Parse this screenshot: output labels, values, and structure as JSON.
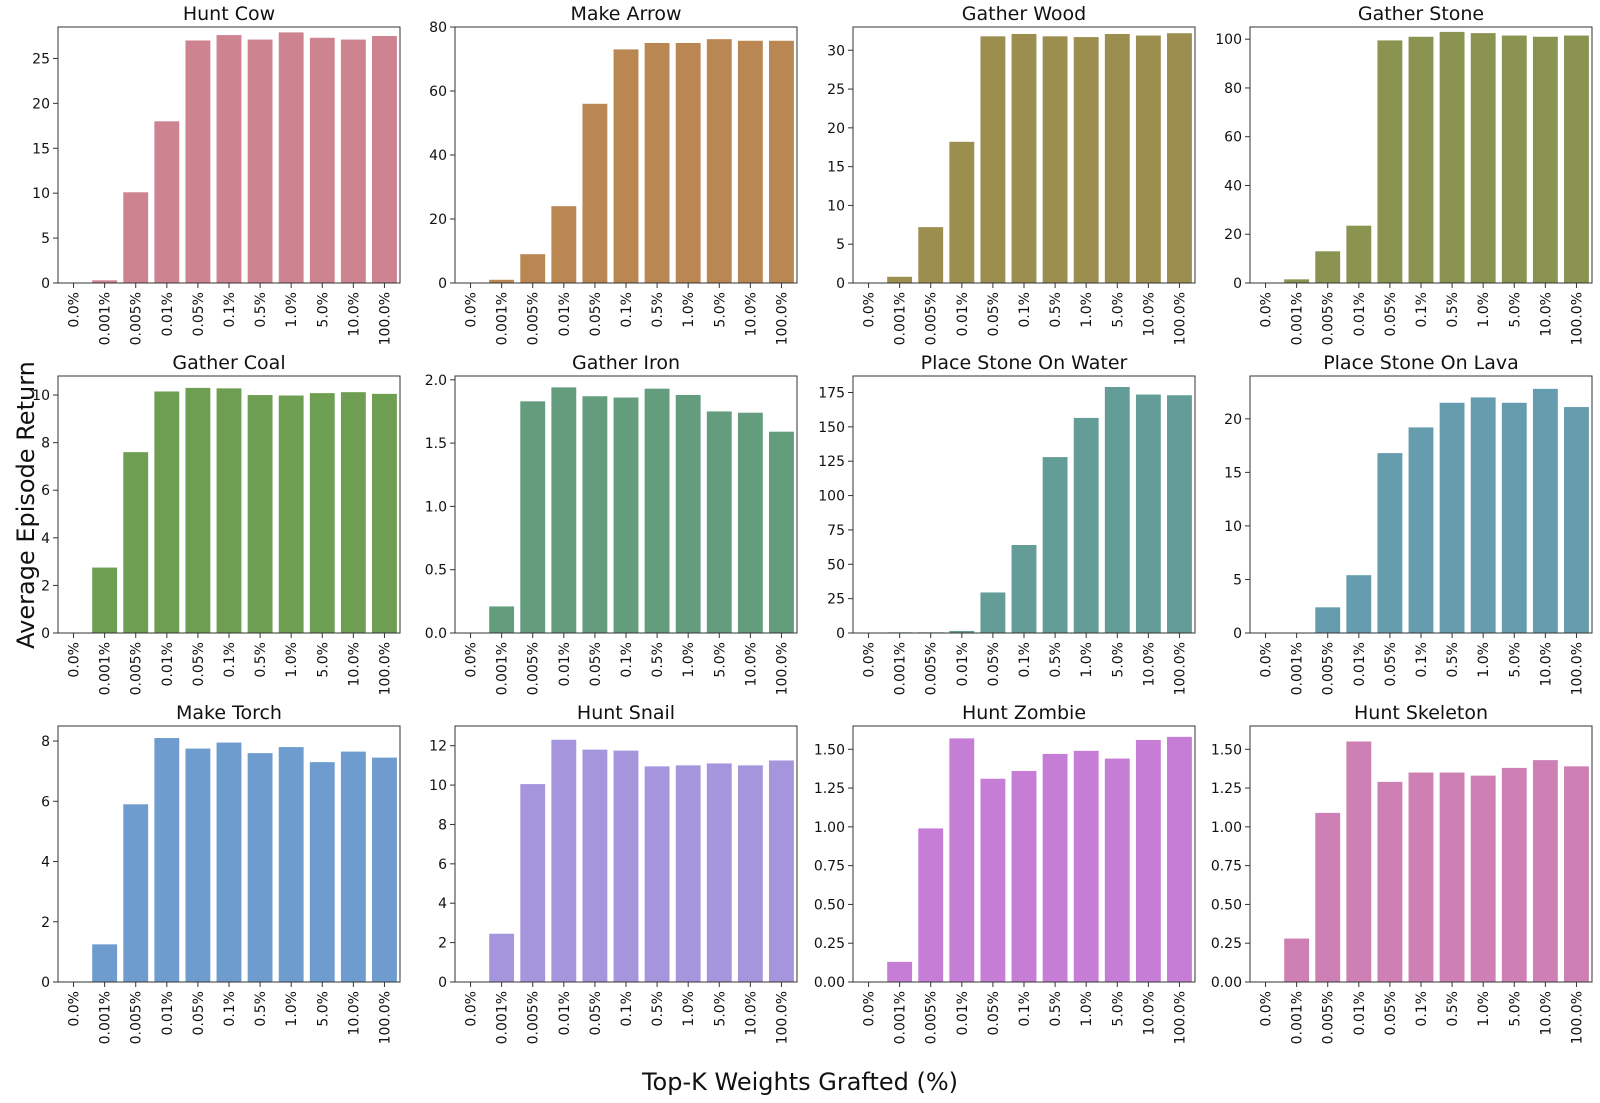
{
  "figure": {
    "ylabel": "Average Episode Return",
    "xlabel": "Top-K Weights Grafted (%)"
  },
  "chart_data": [
    {
      "type": "bar",
      "title": "Hunt Cow",
      "color": "#cd8390",
      "categories": [
        "0.0%",
        "0.001%",
        "0.005%",
        "0.01%",
        "0.05%",
        "0.1%",
        "0.5%",
        "1.0%",
        "5.0%",
        "10.0%",
        "100.0%"
      ],
      "values": [
        0.0,
        0.3,
        10.1,
        18.0,
        27.0,
        27.6,
        27.1,
        27.9,
        27.3,
        27.1,
        27.5
      ],
      "ylim": [
        0,
        28.5
      ],
      "yticks": [
        0,
        5,
        10,
        15,
        20,
        25
      ],
      "ytick_labels": [
        "0",
        "5",
        "10",
        "15",
        "20",
        "25"
      ]
    },
    {
      "type": "bar",
      "title": "Make Arrow",
      "color": "#ba8651",
      "categories": [
        "0.0%",
        "0.001%",
        "0.005%",
        "0.01%",
        "0.05%",
        "0.1%",
        "0.5%",
        "1.0%",
        "5.0%",
        "10.0%",
        "100.0%"
      ],
      "values": [
        0.0,
        1.0,
        9.0,
        24.0,
        56.0,
        73.0,
        75.0,
        75.0,
        76.2,
        75.7,
        75.7
      ],
      "ylim": [
        0,
        80
      ],
      "yticks": [
        0,
        20,
        40,
        60,
        80
      ],
      "ytick_labels": [
        "0",
        "20",
        "40",
        "60",
        "80"
      ]
    },
    {
      "type": "bar",
      "title": "Gather Wood",
      "color": "#9b8e4f",
      "categories": [
        "0.0%",
        "0.001%",
        "0.005%",
        "0.01%",
        "0.05%",
        "0.1%",
        "0.5%",
        "1.0%",
        "5.0%",
        "10.0%",
        "100.0%"
      ],
      "values": [
        0.0,
        0.8,
        7.2,
        18.2,
        31.8,
        32.1,
        31.8,
        31.7,
        32.1,
        31.9,
        32.2
      ],
      "ylim": [
        0,
        33
      ],
      "yticks": [
        0,
        5,
        10,
        15,
        20,
        25,
        30
      ],
      "ytick_labels": [
        "0",
        "5",
        "10",
        "15",
        "20",
        "25",
        "30"
      ]
    },
    {
      "type": "bar",
      "title": "Gather Stone",
      "color": "#8a934f",
      "categories": [
        "0.0%",
        "0.001%",
        "0.005%",
        "0.01%",
        "0.05%",
        "0.1%",
        "0.5%",
        "1.0%",
        "5.0%",
        "10.0%",
        "100.0%"
      ],
      "values": [
        0.0,
        1.5,
        13.0,
        23.5,
        99.5,
        101.0,
        103.0,
        102.5,
        101.5,
        101.0,
        101.5
      ],
      "ylim": [
        0,
        105
      ],
      "yticks": [
        0,
        20,
        40,
        60,
        80,
        100
      ],
      "ytick_labels": [
        "0",
        "20",
        "40",
        "60",
        "80",
        "100"
      ]
    },
    {
      "type": "bar",
      "title": "Gather Coal",
      "color": "#6e9e51",
      "categories": [
        "0.0%",
        "0.001%",
        "0.005%",
        "0.01%",
        "0.05%",
        "0.1%",
        "0.5%",
        "1.0%",
        "5.0%",
        "10.0%",
        "100.0%"
      ],
      "values": [
        0.0,
        2.75,
        7.6,
        10.15,
        10.3,
        10.28,
        10.0,
        9.98,
        10.08,
        10.12,
        10.05
      ],
      "ylim": [
        0,
        10.8
      ],
      "yticks": [
        0,
        2,
        4,
        6,
        8,
        10
      ],
      "ytick_labels": [
        "0",
        "2",
        "4",
        "6",
        "8",
        "10"
      ]
    },
    {
      "type": "bar",
      "title": "Gather Iron",
      "color": "#639d7e",
      "categories": [
        "0.0%",
        "0.001%",
        "0.005%",
        "0.01%",
        "0.05%",
        "0.1%",
        "0.5%",
        "1.0%",
        "5.0%",
        "10.0%",
        "100.0%"
      ],
      "values": [
        0.0,
        0.21,
        1.83,
        1.94,
        1.87,
        1.86,
        1.93,
        1.88,
        1.75,
        1.74,
        1.59
      ],
      "ylim": [
        0,
        2.03
      ],
      "yticks": [
        0,
        0.5,
        1.0,
        1.5,
        2.0
      ],
      "ytick_labels": [
        "0.0",
        "0.5",
        "1.0",
        "1.5",
        "2.0"
      ]
    },
    {
      "type": "bar",
      "title": "Place Stone On Water",
      "color": "#649c97",
      "categories": [
        "0.0%",
        "0.001%",
        "0.005%",
        "0.01%",
        "0.05%",
        "0.1%",
        "0.5%",
        "1.0%",
        "5.0%",
        "10.0%",
        "100.0%"
      ],
      "values": [
        0.0,
        0.5,
        0.5,
        1.5,
        29.5,
        64.0,
        128.0,
        156.5,
        179.0,
        173.5,
        173.0
      ],
      "ylim": [
        0,
        187
      ],
      "yticks": [
        0,
        25,
        50,
        75,
        100,
        125,
        150,
        175
      ],
      "ytick_labels": [
        "0",
        "25",
        "50",
        "75",
        "100",
        "125",
        "150",
        "175"
      ]
    },
    {
      "type": "bar",
      "title": "Place Stone On Lava",
      "color": "#659dae",
      "categories": [
        "0.0%",
        "0.001%",
        "0.005%",
        "0.01%",
        "0.05%",
        "0.1%",
        "0.5%",
        "1.0%",
        "5.0%",
        "10.0%",
        "100.0%"
      ],
      "values": [
        0.0,
        0.0,
        2.4,
        5.4,
        16.8,
        19.2,
        21.5,
        22.0,
        21.5,
        22.8,
        21.1
      ],
      "ylim": [
        0,
        24.0
      ],
      "yticks": [
        0,
        5,
        10,
        15,
        20
      ],
      "ytick_labels": [
        "0",
        "5",
        "10",
        "15",
        "20"
      ]
    },
    {
      "type": "bar",
      "title": "Make Torch",
      "color": "#6e9ccf",
      "categories": [
        "0.0%",
        "0.001%",
        "0.005%",
        "0.01%",
        "0.05%",
        "0.1%",
        "0.5%",
        "1.0%",
        "5.0%",
        "10.0%",
        "100.0%"
      ],
      "values": [
        0.0,
        1.25,
        5.9,
        8.1,
        7.75,
        7.95,
        7.6,
        7.8,
        7.3,
        7.65,
        7.45
      ],
      "ylim": [
        0,
        8.5
      ],
      "yticks": [
        0,
        2,
        4,
        6,
        8
      ],
      "ytick_labels": [
        "0",
        "2",
        "4",
        "6",
        "8"
      ]
    },
    {
      "type": "bar",
      "title": "Hunt Snail",
      "color": "#a495dd",
      "categories": [
        "0.0%",
        "0.001%",
        "0.005%",
        "0.01%",
        "0.05%",
        "0.1%",
        "0.5%",
        "1.0%",
        "5.0%",
        "10.0%",
        "100.0%"
      ],
      "values": [
        0.0,
        2.45,
        10.05,
        12.3,
        11.8,
        11.75,
        10.95,
        11.0,
        11.1,
        11.0,
        11.25
      ],
      "ylim": [
        0,
        13
      ],
      "yticks": [
        0,
        2,
        4,
        6,
        8,
        10,
        12
      ],
      "ytick_labels": [
        "0",
        "2",
        "4",
        "6",
        "8",
        "10",
        "12"
      ]
    },
    {
      "type": "bar",
      "title": "Hunt Zombie",
      "color": "#c57dd6",
      "categories": [
        "0.0%",
        "0.001%",
        "0.005%",
        "0.01%",
        "0.05%",
        "0.1%",
        "0.5%",
        "1.0%",
        "5.0%",
        "10.0%",
        "100.0%"
      ],
      "values": [
        0.0,
        0.13,
        0.99,
        1.57,
        1.31,
        1.36,
        1.47,
        1.49,
        1.44,
        1.56,
        1.58
      ],
      "ylim": [
        0,
        1.65
      ],
      "yticks": [
        0,
        0.25,
        0.5,
        0.75,
        1.0,
        1.25,
        1.5
      ],
      "ytick_labels": [
        "0.00",
        "0.25",
        "0.50",
        "0.75",
        "1.00",
        "1.25",
        "1.50"
      ]
    },
    {
      "type": "bar",
      "title": "Hunt Skeleton",
      "color": "#ce7fb3",
      "categories": [
        "0.0%",
        "0.001%",
        "0.005%",
        "0.01%",
        "0.05%",
        "0.1%",
        "0.5%",
        "1.0%",
        "5.0%",
        "10.0%",
        "100.0%"
      ],
      "values": [
        0.0,
        0.28,
        1.09,
        1.55,
        1.29,
        1.35,
        1.35,
        1.33,
        1.38,
        1.43,
        1.39
      ],
      "ylim": [
        0,
        1.65
      ],
      "yticks": [
        0,
        0.25,
        0.5,
        0.75,
        1.0,
        1.25,
        1.5
      ],
      "ytick_labels": [
        "0.00",
        "0.25",
        "0.50",
        "0.75",
        "1.00",
        "1.25",
        "1.50"
      ]
    }
  ]
}
